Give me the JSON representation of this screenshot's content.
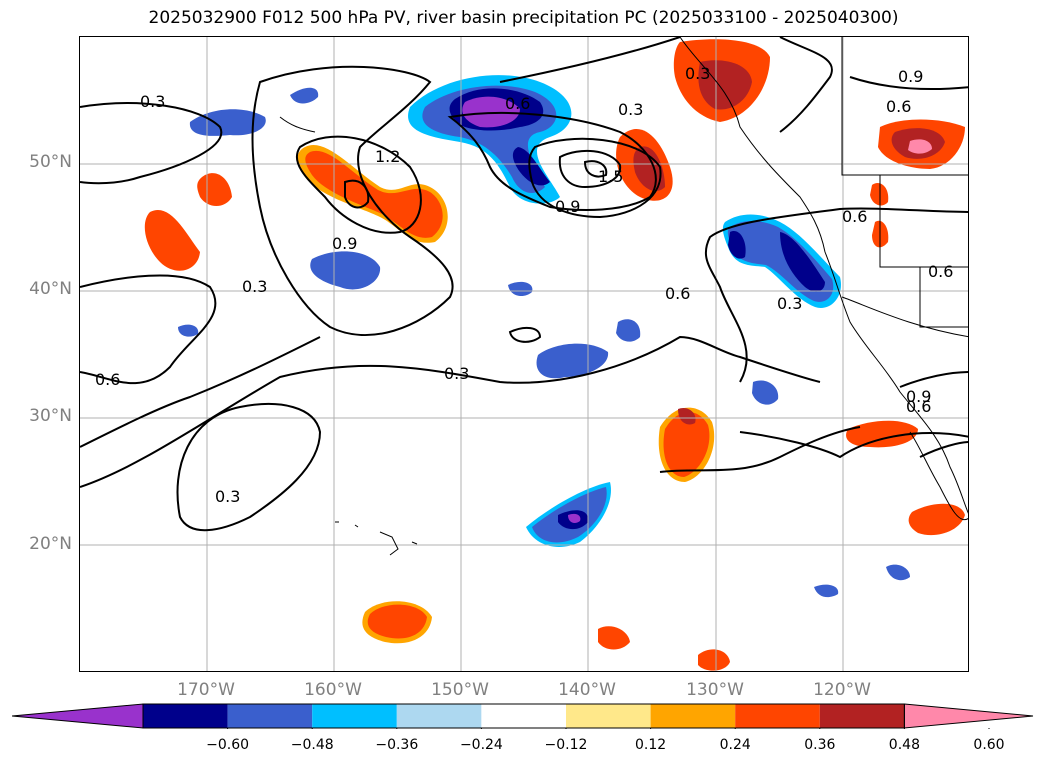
{
  "title": "2025032900 F012 500 hPa PV, river basin precipitation PC (2025033100 - 2025040300)",
  "lat_labels": [
    "50°N",
    "40°N",
    "30°N",
    "20°N"
  ],
  "lon_labels": [
    "170°W",
    "160°W",
    "150°W",
    "140°W",
    "130°W",
    "120°W"
  ],
  "colorbar": {
    "ticks": [
      "−0.60",
      "−0.48",
      "−0.36",
      "−0.24",
      "−0.12",
      "0.12",
      "0.24",
      "0.36",
      "0.48",
      "0.60"
    ],
    "colors": [
      "#9932cc",
      "#00008b",
      "#3a5fcd",
      "#00bfff",
      "#add8f0",
      "#ffffff",
      "#ffe88a",
      "#ffa500",
      "#ff4500",
      "#b22222",
      "#ff88aa"
    ]
  },
  "contour_labels": [
    "0.3",
    "0.6",
    "0.9",
    "1.2",
    "1.5",
    "0.3",
    "0.6",
    "0.3",
    "0.9",
    "0.3",
    "0.6",
    "0.9",
    "0.6",
    "0.3",
    "0.6",
    "0.3",
    "0.3",
    "0.6",
    "0.9",
    "0.6"
  ],
  "map_extent": {
    "lon_min": -180,
    "lon_max": -110,
    "lat_min": 10,
    "lat_max": 60
  }
}
